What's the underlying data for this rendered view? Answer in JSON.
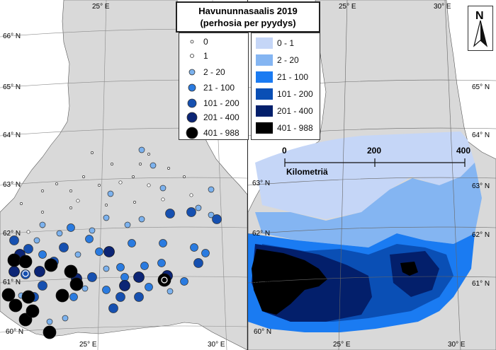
{
  "title": {
    "line1": "Havununnasaalis 2019",
    "line2": "(perhosia per pyydys)"
  },
  "legend_points": [
    {
      "label": "0",
      "color": "#ffffff"
    },
    {
      "label": "1",
      "color": "#ffffff"
    },
    {
      "label": "2 - 20",
      "color": "#7cb2ee"
    },
    {
      "label": "21 - 100",
      "color": "#2a7be0"
    },
    {
      "label": "101 - 200",
      "color": "#1650b0"
    },
    {
      "label": "201 - 400",
      "color": "#0c2575"
    },
    {
      "label": "401 - 988",
      "color": "#000000"
    }
  ],
  "legend_areas": [
    {
      "label": "0 - 1",
      "color": "#c5d6f7"
    },
    {
      "label": "2 - 20",
      "color": "#84b5f2"
    },
    {
      "label": "21 - 100",
      "color": "#1a7bf2"
    },
    {
      "label": "101 - 200",
      "color": "#0a4fb5"
    },
    {
      "label": "201 - 400",
      "color": "#031f6b"
    },
    {
      "label": "401 - 988",
      "color": "#000000"
    }
  ],
  "map_left": {
    "lon_labels": [
      "25° E",
      "30° E",
      "25° E",
      "30° E"
    ],
    "lat_labels": [
      "66° N",
      "65° N",
      "64° N",
      "63° N",
      "62° N",
      "61° N",
      "60° N"
    ],
    "land_color": "#d9d9d9"
  },
  "map_right": {
    "lon_labels": [
      "25° E",
      "30° E",
      "25° E",
      "30° E"
    ],
    "lat_labels": [
      "65° N",
      "64° N",
      "63° N",
      "63° N",
      "62° N",
      "62° N",
      "61° N",
      "61° N",
      "60° N"
    ]
  },
  "scale_bar": {
    "ticks": [
      "0",
      "200",
      "400"
    ],
    "unit": "Kilometriä"
  },
  "compass": {
    "label": "N"
  }
}
